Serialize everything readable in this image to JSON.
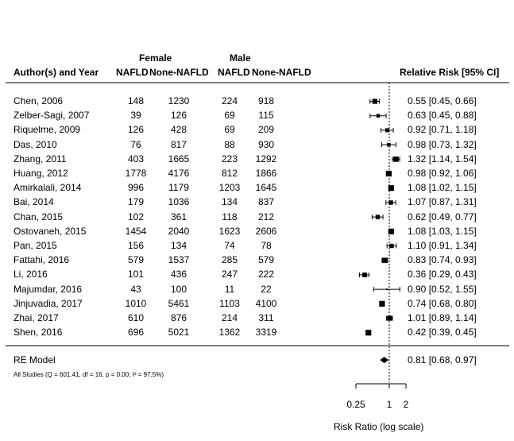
{
  "headers": {
    "author": "Author(s) and Year",
    "female_group": "Female",
    "male_group": "Male",
    "female_nafld": "NAFLD",
    "female_none": "None-NAFLD",
    "male_nafld": "NAFLD",
    "male_none": "None-NAFLD",
    "rr": "Relative Risk [95% CI]"
  },
  "studies": [
    {
      "author": "Chen, 2006",
      "f_nafld": "148",
      "f_none": "1230",
      "m_nafld": "224",
      "m_none": "918",
      "rr_text": "0.55 [0.45, 0.66]"
    },
    {
      "author": "Zelber-Sagi, 2007",
      "f_nafld": "39",
      "f_none": "126",
      "m_nafld": "69",
      "m_none": "115",
      "rr_text": "0.63 [0.45, 0.88]"
    },
    {
      "author": "Riquelme, 2009",
      "f_nafld": "126",
      "f_none": "428",
      "m_nafld": "69",
      "m_none": "209",
      "rr_text": "0.92 [0.71, 1.18]"
    },
    {
      "author": "Das, 2010",
      "f_nafld": "76",
      "f_none": "817",
      "m_nafld": "88",
      "m_none": "930",
      "rr_text": "0.98 [0.73, 1.32]"
    },
    {
      "author": "Zhang, 2011",
      "f_nafld": "403",
      "f_none": "1665",
      "m_nafld": "223",
      "m_none": "1292",
      "rr_text": "1.32 [1.14, 1.54]"
    },
    {
      "author": "Huang, 2012",
      "f_nafld": "1778",
      "f_none": "4176",
      "m_nafld": "812",
      "m_none": "1866",
      "rr_text": "0.98 [0.92, 1.06]"
    },
    {
      "author": "Amirkalali, 2014",
      "f_nafld": "996",
      "f_none": "1179",
      "m_nafld": "1203",
      "m_none": "1645",
      "rr_text": "1.08 [1.02, 1.15]"
    },
    {
      "author": "Bai, 2014",
      "f_nafld": "179",
      "f_none": "1036",
      "m_nafld": "134",
      "m_none": "837",
      "rr_text": "1.07 [0.87, 1.31]"
    },
    {
      "author": "Chan, 2015",
      "f_nafld": "102",
      "f_none": "361",
      "m_nafld": "118",
      "m_none": "212",
      "rr_text": "0.62 [0.49, 0.77]"
    },
    {
      "author": "Ostovaneh, 2015",
      "f_nafld": "1454",
      "f_none": "2040",
      "m_nafld": "1623",
      "m_none": "2606",
      "rr_text": "1.08 [1.03, 1.15]"
    },
    {
      "author": "Pan, 2015",
      "f_nafld": "156",
      "f_none": "134",
      "m_nafld": "74",
      "m_none": "78",
      "rr_text": "1.10 [0.91, 1.34]"
    },
    {
      "author": "Fattahi, 2016",
      "f_nafld": "579",
      "f_none": "1537",
      "m_nafld": "285",
      "m_none": "579",
      "rr_text": "0.83 [0.74, 0.93]"
    },
    {
      "author": "Li, 2016",
      "f_nafld": "101",
      "f_none": "436",
      "m_nafld": "247",
      "m_none": "222",
      "rr_text": "0.36 [0.29, 0.43]"
    },
    {
      "author": "Majumdar, 2016",
      "f_nafld": "43",
      "f_none": "100",
      "m_nafld": "11",
      "m_none": "22",
      "rr_text": "0.90 [0.52, 1.55]"
    },
    {
      "author": "Jinjuvadia, 2017",
      "f_nafld": "1010",
      "f_none": "5461",
      "m_nafld": "1103",
      "m_none": "4100",
      "rr_text": "0.74 [0.68, 0.80]"
    },
    {
      "author": "Zhai, 2017",
      "f_nafld": "610",
      "f_none": "876",
      "m_nafld": "214",
      "m_none": "311",
      "rr_text": "1.01 [0.89, 1.14]"
    },
    {
      "author": "Shen, 2016",
      "f_nafld": "696",
      "f_none": "5021",
      "m_nafld": "1362",
      "m_none": "3319",
      "rr_text": "0.42 [0.39, 0.45]"
    }
  ],
  "summary": {
    "label": "RE Model",
    "rr_text": "0.81 [0.68, 0.97]",
    "stats": "All Studies (Q = 601.41, df = 16, p = 0.00; I² = 97.5%)"
  },
  "axis": {
    "ticks": [
      "0.25",
      "1",
      "2"
    ],
    "label": "Risk Ratio (log scale)"
  },
  "chart_data": {
    "type": "forest",
    "xscale": "log",
    "xlim": [
      0.25,
      2
    ],
    "reference_line": 1,
    "xlabel": "Risk Ratio (log scale)",
    "tick_values": [
      0.25,
      1,
      2
    ],
    "points": [
      {
        "study": "Chen, 2006",
        "rr": 0.55,
        "lo": 0.45,
        "hi": 0.66,
        "weight": 0.7
      },
      {
        "study": "Zelber-Sagi, 2007",
        "rr": 0.63,
        "lo": 0.45,
        "hi": 0.88,
        "weight": 0.5
      },
      {
        "study": "Riquelme, 2009",
        "rr": 0.92,
        "lo": 0.71,
        "hi": 1.18,
        "weight": 0.55
      },
      {
        "study": "Das, 2010",
        "rr": 0.98,
        "lo": 0.73,
        "hi": 1.32,
        "weight": 0.5
      },
      {
        "study": "Zhang, 2011",
        "rr": 1.32,
        "lo": 1.14,
        "hi": 1.54,
        "weight": 0.75
      },
      {
        "study": "Huang, 2012",
        "rr": 0.98,
        "lo": 0.92,
        "hi": 1.06,
        "weight": 0.8
      },
      {
        "study": "Amirkalali, 2014",
        "rr": 1.08,
        "lo": 1.02,
        "hi": 1.15,
        "weight": 0.8
      },
      {
        "study": "Bai, 2014",
        "rr": 1.07,
        "lo": 0.87,
        "hi": 1.31,
        "weight": 0.6
      },
      {
        "study": "Chan, 2015",
        "rr": 0.62,
        "lo": 0.49,
        "hi": 0.77,
        "weight": 0.6
      },
      {
        "study": "Ostovaneh, 2015",
        "rr": 1.08,
        "lo": 1.03,
        "hi": 1.15,
        "weight": 0.8
      },
      {
        "study": "Pan, 2015",
        "rr": 1.1,
        "lo": 0.91,
        "hi": 1.34,
        "weight": 0.6
      },
      {
        "study": "Fattahi, 2016",
        "rr": 0.83,
        "lo": 0.74,
        "hi": 0.93,
        "weight": 0.75
      },
      {
        "study": "Li, 2016",
        "rr": 0.36,
        "lo": 0.29,
        "hi": 0.43,
        "weight": 0.65
      },
      {
        "study": "Majumdar, 2016",
        "rr": 0.9,
        "lo": 0.52,
        "hi": 1.55,
        "weight": 0.1
      },
      {
        "study": "Jinjuvadia, 2017",
        "rr": 0.74,
        "lo": 0.68,
        "hi": 0.8,
        "weight": 0.8
      },
      {
        "study": "Zhai, 2017",
        "rr": 1.01,
        "lo": 0.89,
        "hi": 1.14,
        "weight": 0.7
      },
      {
        "study": "Shen, 2016",
        "rr": 0.42,
        "lo": 0.39,
        "hi": 0.45,
        "weight": 0.8
      }
    ],
    "summary": {
      "rr": 0.81,
      "lo": 0.68,
      "hi": 0.97
    }
  }
}
